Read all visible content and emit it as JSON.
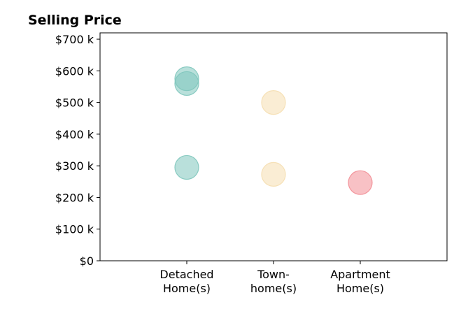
{
  "chart_data": {
    "type": "scatter",
    "title": "Selling Price",
    "xlabel": "",
    "ylabel": "",
    "categories": [
      [
        "Detached",
        "Home(s)"
      ],
      [
        "Town-",
        "home(s)"
      ],
      [
        "Apartment",
        "Home(s)"
      ]
    ],
    "ylim": [
      0,
      720000
    ],
    "yticks": [
      {
        "value": 0,
        "label": "$0"
      },
      {
        "value": 100000,
        "label": "$100 k"
      },
      {
        "value": 200000,
        "label": "$200 k"
      },
      {
        "value": 300000,
        "label": "$300 k"
      },
      {
        "value": 400000,
        "label": "$400 k"
      },
      {
        "value": 500000,
        "label": "$500 k"
      },
      {
        "value": 600000,
        "label": "$600 k"
      },
      {
        "value": 700000,
        "label": "$700 k"
      }
    ],
    "grid": false,
    "series": [
      {
        "category": 0,
        "color": "#80c7bd",
        "values": [
          295000,
          560000,
          575000
        ]
      },
      {
        "category": 1,
        "color": "#f5deb0",
        "values": [
          273000,
          500000
        ]
      },
      {
        "category": 2,
        "color": "#f28e96",
        "values": [
          247000
        ]
      }
    ]
  }
}
